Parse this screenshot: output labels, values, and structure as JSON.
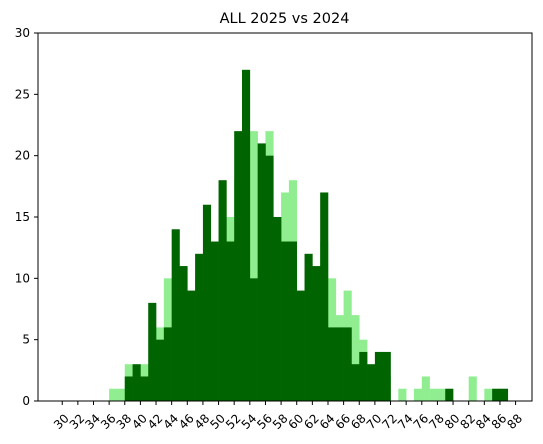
{
  "chart_data": {
    "type": "bar",
    "title": "ALL 2025 vs 2024",
    "xlabel": "",
    "ylabel": "",
    "xlim": [
      26.9,
      90.1
    ],
    "ylim": [
      0,
      30
    ],
    "x_ticks": [
      30,
      32,
      34,
      36,
      38,
      40,
      42,
      44,
      46,
      48,
      50,
      52,
      54,
      56,
      58,
      60,
      62,
      64,
      66,
      68,
      70,
      72,
      74,
      76,
      78,
      80,
      82,
      84,
      86,
      88
    ],
    "y_ticks": [
      0,
      5,
      10,
      15,
      20,
      25,
      30
    ],
    "bin_width": 1,
    "grid": false,
    "legend": "none",
    "colors": {
      "series_2024": "#90ee90",
      "series_2025": "#006400"
    },
    "series": [
      {
        "key": "series_2024",
        "x": [
          36,
          37,
          38,
          39,
          40,
          41,
          42,
          43,
          44,
          45,
          46,
          47,
          48,
          49,
          50,
          51,
          52,
          53,
          54,
          55,
          56,
          57,
          58,
          59,
          60,
          61,
          62,
          63,
          64,
          65,
          66,
          67,
          68,
          69,
          70,
          71,
          72,
          73,
          74,
          75,
          76,
          77,
          78,
          79,
          80,
          81,
          82,
          83,
          84,
          85,
          86,
          87
        ],
        "values": [
          1,
          1,
          3,
          2,
          3,
          1,
          6,
          10,
          10,
          6,
          8,
          10,
          9,
          11,
          15,
          15,
          18,
          14,
          22,
          19,
          22,
          11,
          17,
          18,
          6,
          10,
          10,
          13,
          10,
          7,
          9,
          7,
          5,
          2,
          1,
          2,
          0,
          1,
          0,
          1,
          2,
          1,
          1,
          0,
          0,
          0,
          2,
          0,
          1,
          0,
          0,
          0
        ]
      },
      {
        "key": "series_2025",
        "x": [
          36,
          37,
          38,
          39,
          40,
          41,
          42,
          43,
          44,
          45,
          46,
          47,
          48,
          49,
          50,
          51,
          52,
          53,
          54,
          55,
          56,
          57,
          58,
          59,
          60,
          61,
          62,
          63,
          64,
          65,
          66,
          67,
          68,
          69,
          70,
          71,
          72,
          73,
          74,
          75,
          76,
          77,
          78,
          79,
          80,
          81,
          82,
          83,
          84,
          85,
          86,
          87
        ],
        "values": [
          0,
          0,
          2,
          3,
          2,
          8,
          5,
          6,
          14,
          11,
          9,
          12,
          16,
          13,
          18,
          13,
          22,
          27,
          10,
          21,
          20,
          15,
          13,
          13,
          9,
          12,
          11,
          17,
          6,
          6,
          6,
          3,
          4,
          3,
          4,
          4,
          0,
          0,
          0,
          0,
          0,
          0,
          0,
          1,
          0,
          0,
          0,
          0,
          0,
          1,
          1,
          0
        ]
      }
    ]
  }
}
